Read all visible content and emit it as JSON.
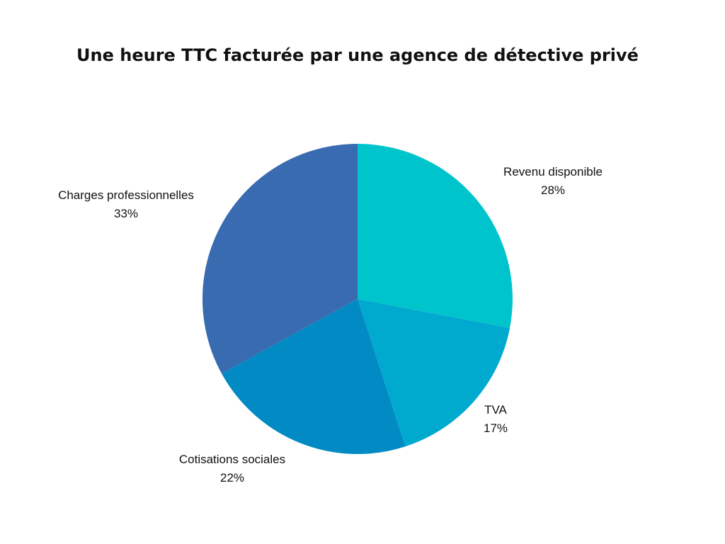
{
  "chart_data": {
    "type": "pie",
    "title": "Une heure TTC facturée par une agence de détective privé",
    "slices": [
      {
        "label": "Revenu disponible",
        "value": 28,
        "display": "28%",
        "color": "#00c4cc"
      },
      {
        "label": "TVA",
        "value": 17,
        "display": "17%",
        "color": "#00aacf"
      },
      {
        "label": "Cotisations sociales",
        "value": 22,
        "display": "22%",
        "color": "#028ac4"
      },
      {
        "label": "Charges professionnelles",
        "value": 33,
        "display": "33%",
        "color": "#396bb1"
      }
    ],
    "start": "12 o'clock",
    "direction": "clockwise",
    "legend": "none"
  }
}
